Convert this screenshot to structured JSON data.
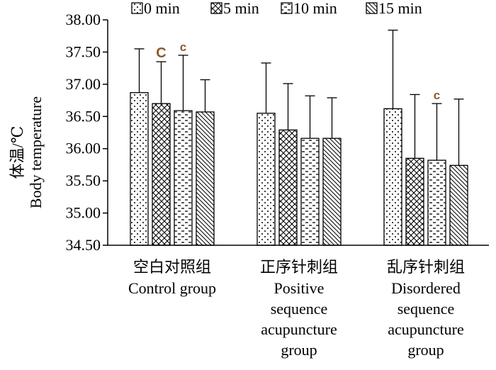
{
  "chart_data": {
    "type": "bar",
    "title": "",
    "ylabel_cn": "体温/℃",
    "ylabel_en": "Body temperature",
    "ylim": [
      34.5,
      38.0
    ],
    "yticks": [
      "38.00",
      "37.50",
      "37.00",
      "36.50",
      "36.00",
      "35.50",
      "35.00",
      "34.50"
    ],
    "ytick_values": [
      38.0,
      37.5,
      37.0,
      36.5,
      36.0,
      35.5,
      35.0,
      34.5
    ],
    "legend_position": "top",
    "categories": [
      {
        "cn": "空白对照组",
        "en": [
          "Control group"
        ]
      },
      {
        "cn": "正序针刺组",
        "en": [
          "Positive",
          "sequence",
          "acupuncture",
          "group"
        ]
      },
      {
        "cn": "乱序针刺组",
        "en": [
          "Disordered",
          "sequence",
          "acupuncture",
          "group"
        ]
      }
    ],
    "series": [
      {
        "name": "0 min",
        "pattern": "dots",
        "values": [
          36.87,
          36.55,
          36.62
        ],
        "errors": [
          0.68,
          0.78,
          1.22
        ]
      },
      {
        "name": "5 min",
        "pattern": "cross",
        "values": [
          36.7,
          36.29,
          35.85
        ],
        "errors": [
          0.65,
          0.72,
          0.99
        ]
      },
      {
        "name": "10 min",
        "pattern": "dashes",
        "values": [
          36.59,
          36.16,
          35.82
        ],
        "errors": [
          0.86,
          0.66,
          0.88
        ]
      },
      {
        "name": "15 min",
        "pattern": "diag",
        "values": [
          36.57,
          36.16,
          35.74
        ],
        "errors": [
          0.5,
          0.63,
          1.03
        ]
      }
    ],
    "annotations": [
      {
        "text": "C",
        "category": 0,
        "series": 1
      },
      {
        "text": "c",
        "category": 0,
        "series": 2
      },
      {
        "text": "c",
        "category": 2,
        "series": 2
      }
    ]
  }
}
